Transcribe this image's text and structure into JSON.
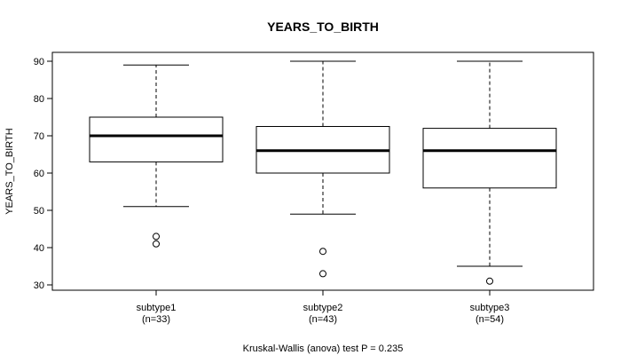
{
  "chart_data": {
    "type": "boxplot",
    "title": "YEARS_TO_BIRTH",
    "ylabel": "YEARS_TO_BIRTH",
    "xlabel": "",
    "ylim": [
      29,
      92
    ],
    "yticks": [
      30,
      40,
      50,
      60,
      70,
      80,
      90
    ],
    "footer": "Kruskal-Wallis (anova) test P = 0.235",
    "groups": [
      {
        "name": "subtype1",
        "n_label": "(n=33)",
        "whisker_low": 51,
        "q1": 63,
        "median": 70,
        "q3": 75,
        "whisker_high": 89,
        "outliers": [
          43,
          41
        ]
      },
      {
        "name": "subtype2",
        "n_label": "(n=43)",
        "whisker_low": 49,
        "q1": 60,
        "median": 66,
        "q3": 72.5,
        "whisker_high": 90,
        "outliers": [
          39,
          33
        ]
      },
      {
        "name": "subtype3",
        "n_label": "(n=54)",
        "whisker_low": 35,
        "q1": 56,
        "median": 66,
        "q3": 72,
        "whisker_high": 90,
        "outliers": [
          31
        ]
      }
    ]
  }
}
